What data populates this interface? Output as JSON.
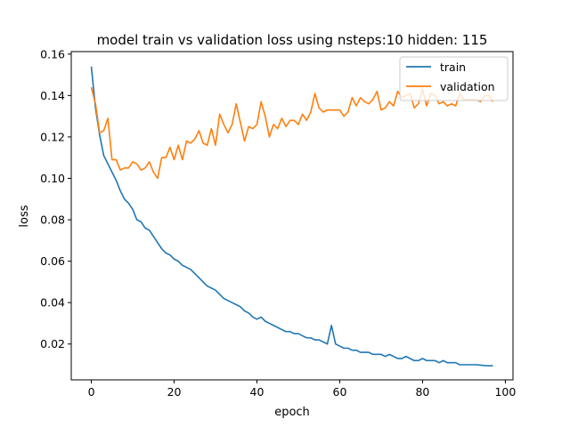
{
  "chart_data": {
    "type": "line",
    "title": "model train vs validation loss using nsteps:10 hidden: 115",
    "xlabel": "epoch",
    "ylabel": "loss",
    "xlim": [
      -4.85,
      101.85
    ],
    "ylim": [
      0.0027,
      0.1612
    ],
    "xticks": [
      0,
      20,
      40,
      60,
      80,
      100
    ],
    "yticks": [
      0.02,
      0.04,
      0.06,
      0.08,
      0.1,
      0.12,
      0.14,
      0.16
    ],
    "ytick_labels": [
      "0.02",
      "0.04",
      "0.06",
      "0.08",
      "0.10",
      "0.12",
      "0.14",
      "0.16"
    ],
    "grid": false,
    "legend_position": "top-right",
    "series": [
      {
        "name": "train",
        "color": "#1f77b4",
        "x": [
          0,
          1,
          2,
          3,
          4,
          5,
          6,
          7,
          8,
          9,
          10,
          11,
          12,
          13,
          14,
          15,
          16,
          17,
          18,
          19,
          20,
          21,
          22,
          23,
          24,
          25,
          26,
          27,
          28,
          29,
          30,
          31,
          32,
          33,
          34,
          35,
          36,
          37,
          38,
          39,
          40,
          41,
          42,
          43,
          44,
          45,
          46,
          47,
          48,
          49,
          50,
          51,
          52,
          53,
          54,
          55,
          56,
          57,
          58,
          59,
          60,
          61,
          62,
          63,
          64,
          65,
          66,
          67,
          68,
          69,
          70,
          71,
          72,
          73,
          74,
          75,
          76,
          77,
          78,
          79,
          80,
          81,
          82,
          83,
          84,
          85,
          86,
          87,
          88,
          89,
          90,
          91,
          92,
          93,
          94,
          95,
          96,
          97
        ],
        "y": [
          0.154,
          0.134,
          0.121,
          0.111,
          0.107,
          0.103,
          0.099,
          0.094,
          0.09,
          0.088,
          0.085,
          0.08,
          0.079,
          0.076,
          0.075,
          0.072,
          0.069,
          0.066,
          0.064,
          0.063,
          0.061,
          0.06,
          0.058,
          0.057,
          0.056,
          0.054,
          0.052,
          0.05,
          0.048,
          0.047,
          0.046,
          0.044,
          0.042,
          0.041,
          0.04,
          0.039,
          0.038,
          0.036,
          0.035,
          0.033,
          0.032,
          0.033,
          0.031,
          0.03,
          0.029,
          0.028,
          0.027,
          0.026,
          0.026,
          0.025,
          0.025,
          0.024,
          0.023,
          0.023,
          0.022,
          0.022,
          0.021,
          0.02,
          0.029,
          0.02,
          0.019,
          0.018,
          0.018,
          0.017,
          0.017,
          0.016,
          0.016,
          0.016,
          0.015,
          0.015,
          0.015,
          0.014,
          0.015,
          0.014,
          0.013,
          0.013,
          0.014,
          0.013,
          0.012,
          0.012,
          0.013,
          0.012,
          0.012,
          0.012,
          0.011,
          0.012,
          0.011,
          0.011,
          0.011,
          0.01,
          0.01,
          0.01,
          0.01,
          0.01,
          0.0098,
          0.0096,
          0.0095,
          0.0095
        ]
      },
      {
        "name": "validation",
        "color": "#ff7f0e",
        "x": [
          0,
          1,
          2,
          3,
          4,
          5,
          6,
          7,
          8,
          9,
          10,
          11,
          12,
          13,
          14,
          15,
          16,
          17,
          18,
          19,
          20,
          21,
          22,
          23,
          24,
          25,
          26,
          27,
          28,
          29,
          30,
          31,
          32,
          33,
          34,
          35,
          36,
          37,
          38,
          39,
          40,
          41,
          42,
          43,
          44,
          45,
          46,
          47,
          48,
          49,
          50,
          51,
          52,
          53,
          54,
          55,
          56,
          57,
          58,
          59,
          60,
          61,
          62,
          63,
          64,
          65,
          66,
          67,
          68,
          69,
          70,
          71,
          72,
          73,
          74,
          75,
          76,
          77,
          78,
          79,
          80,
          81,
          82,
          83,
          84,
          85,
          86,
          87,
          88,
          89,
          90,
          91,
          92,
          93,
          94,
          95,
          96,
          97
        ],
        "y": [
          0.144,
          0.136,
          0.122,
          0.123,
          0.129,
          0.109,
          0.109,
          0.104,
          0.105,
          0.105,
          0.108,
          0.107,
          0.104,
          0.105,
          0.108,
          0.103,
          0.1,
          0.11,
          0.11,
          0.115,
          0.109,
          0.116,
          0.109,
          0.118,
          0.117,
          0.119,
          0.123,
          0.117,
          0.116,
          0.124,
          0.116,
          0.131,
          0.126,
          0.122,
          0.126,
          0.136,
          0.127,
          0.118,
          0.125,
          0.124,
          0.126,
          0.137,
          0.13,
          0.12,
          0.126,
          0.124,
          0.129,
          0.125,
          0.128,
          0.128,
          0.126,
          0.131,
          0.128,
          0.132,
          0.141,
          0.134,
          0.132,
          0.133,
          0.133,
          0.133,
          0.133,
          0.13,
          0.132,
          0.139,
          0.135,
          0.139,
          0.137,
          0.136,
          0.138,
          0.142,
          0.133,
          0.134,
          0.137,
          0.135,
          0.142,
          0.139,
          0.14,
          0.141,
          0.134,
          0.136,
          0.143,
          0.135,
          0.141,
          0.14,
          0.136,
          0.137,
          0.135,
          0.136,
          0.135,
          0.141,
          0.138,
          0.138,
          0.138,
          0.138,
          0.137,
          0.14,
          0.14,
          0.137
        ]
      }
    ]
  }
}
